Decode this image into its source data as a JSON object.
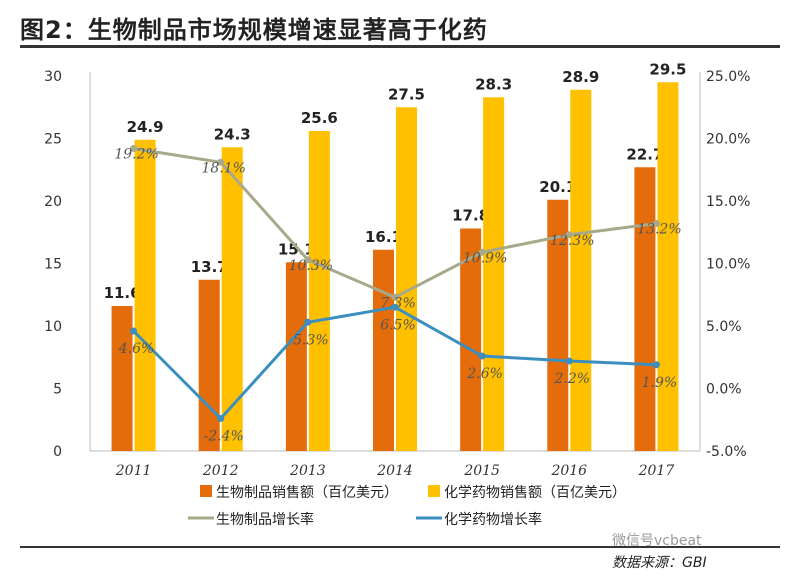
{
  "title": "图2：生物制品市场规模增速显著高于化药",
  "source": "数据来源：GBI",
  "watermark": "微信号vcbeat",
  "chart_data": {
    "type": "bar",
    "categories": [
      "2011",
      "2012",
      "2013",
      "2014",
      "2015",
      "2016",
      "2017"
    ],
    "series": [
      {
        "name": "生物制品销售额（百亿美元）",
        "kind": "bar",
        "axis": "left",
        "color": "#E46C0A",
        "values": [
          11.6,
          13.7,
          15.1,
          16.1,
          17.8,
          20.1,
          22.7
        ],
        "labels": [
          "11.6",
          "13.7",
          "15.1",
          "16.1",
          "17.8",
          "20.1",
          "22.7"
        ]
      },
      {
        "name": "化学药物销售额（百亿美元）",
        "kind": "bar",
        "axis": "left",
        "color": "#FFC000",
        "values": [
          24.9,
          24.3,
          25.6,
          27.5,
          28.3,
          28.9,
          29.5
        ],
        "labels": [
          "24.9",
          "24.3",
          "25.6",
          "27.5",
          "28.3",
          "28.9",
          "29.5"
        ]
      },
      {
        "name": "生物制品增长率",
        "kind": "line",
        "axis": "right",
        "color": "#A8A88A",
        "values": [
          19.2,
          18.1,
          10.3,
          7.3,
          10.9,
          12.3,
          13.2
        ],
        "labels": [
          "19.2%",
          "18.1%",
          "10.3%",
          "7.3%",
          "10.9%",
          "12.3%",
          "13.2%"
        ]
      },
      {
        "name": "化学药物增长率",
        "kind": "line",
        "axis": "right",
        "color": "#3B8FC0",
        "values": [
          4.6,
          -2.4,
          5.3,
          6.5,
          2.6,
          2.2,
          1.9
        ],
        "labels": [
          "4.6%",
          "-2.4%",
          "5.3%",
          "6.5%",
          "2.6%",
          "2.2%",
          "1.9%"
        ]
      }
    ],
    "ylim_left": [
      0,
      30
    ],
    "yticks_left": [
      "0",
      "5",
      "10",
      "15",
      "20",
      "25",
      "30"
    ],
    "ylim_right": [
      -5,
      25
    ],
    "yticks_right": [
      "-5.0%",
      "0.0%",
      "5.0%",
      "10.0%",
      "15.0%",
      "20.0%",
      "25.0%"
    ],
    "legend_position": "bottom"
  }
}
